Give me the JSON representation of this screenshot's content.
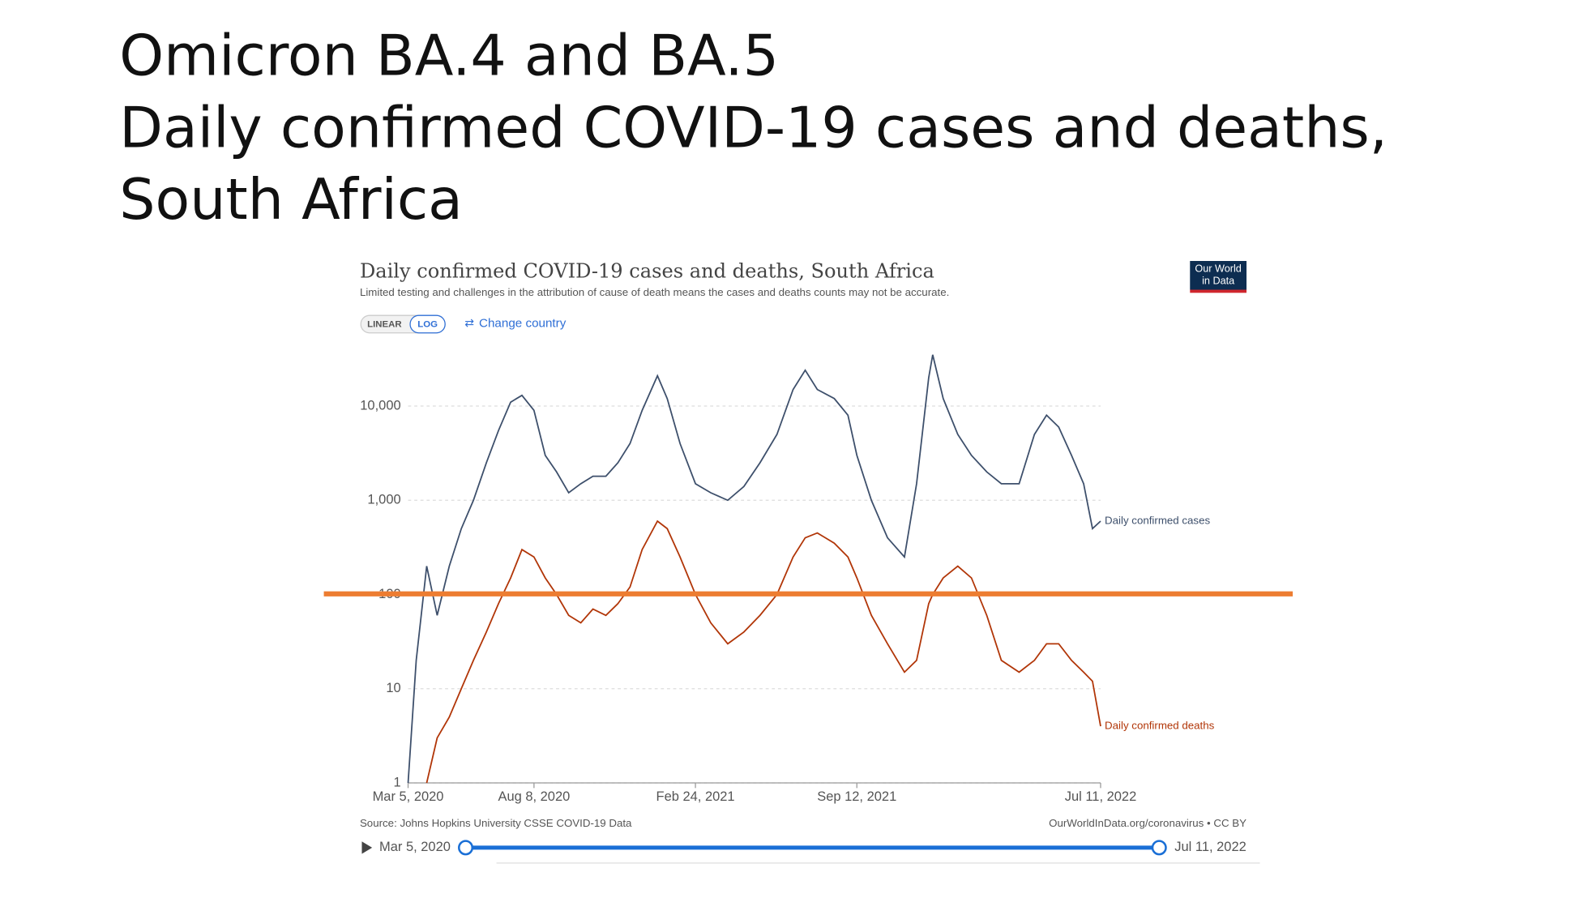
{
  "slide_title": [
    "Omicron BA.4 and BA.5",
    "Daily confirmed COVID-19 cases and deaths,",
    "South Africa"
  ],
  "logo": [
    "Our World",
    "in Data"
  ],
  "controls": {
    "linear": "LINEAR",
    "log": "LOG",
    "change": "Change country"
  },
  "source": "Source: Johns Hopkins University CSSE COVID-19 Data",
  "credit": "OurWorldInData.org/coronavirus • CC BY",
  "timeline": {
    "start": "Mar 5, 2020",
    "end": "Jul 11, 2022"
  },
  "chart_data": {
    "type": "line",
    "title": "Daily confirmed COVID-19 cases and deaths, South Africa",
    "subtitle": "Limited testing and challenges in the attribution of cause of death means the cases and deaths counts may not be accurate.",
    "x": [
      "Mar 5, 2020",
      "Mar 15, 2020",
      "Mar 28, 2020",
      "Apr 10, 2020",
      "Apr 25, 2020",
      "May 10, 2020",
      "May 25, 2020",
      "Jun 10, 2020",
      "Jun 25, 2020",
      "Jul 10, 2020",
      "Jul 24, 2020",
      "Aug 8, 2020",
      "Aug 22, 2020",
      "Sep 5, 2020",
      "Sep 20, 2020",
      "Oct 5, 2020",
      "Oct 20, 2020",
      "Nov 5, 2020",
      "Nov 20, 2020",
      "Dec 5, 2020",
      "Dec 20, 2020",
      "Jan 8, 2021",
      "Jan 20, 2021",
      "Feb 5, 2021",
      "Feb 24, 2021",
      "Mar 15, 2021",
      "Apr 5, 2021",
      "Apr 25, 2021",
      "May 15, 2021",
      "Jun 5, 2021",
      "Jun 25, 2021",
      "Jul 10, 2021",
      "Jul 25, 2021",
      "Aug 15, 2021",
      "Sep 1, 2021",
      "Sep 12, 2021",
      "Sep 30, 2021",
      "Oct 20, 2021",
      "Nov 10, 2021",
      "Nov 25, 2021",
      "Dec 10, 2021",
      "Dec 15, 2021",
      "Dec 28, 2021",
      "Jan 15, 2022",
      "Feb 1, 2022",
      "Feb 20, 2022",
      "Mar 10, 2022",
      "Apr 1, 2022",
      "Apr 20, 2022",
      "May 5, 2022",
      "May 20, 2022",
      "Jun 5, 2022",
      "Jun 20, 2022",
      "Jul 1, 2022",
      "Jul 11, 2022"
    ],
    "series": [
      {
        "name": "Daily confirmed cases",
        "color": "#3d4f6b",
        "values": [
          1,
          20,
          200,
          60,
          200,
          500,
          1000,
          2500,
          5500,
          11000,
          13000,
          9000,
          3000,
          2000,
          1200,
          1500,
          1800,
          1800,
          2500,
          4000,
          9000,
          21000,
          12000,
          4000,
          1500,
          1200,
          1000,
          1400,
          2500,
          5000,
          15000,
          24000,
          15000,
          12000,
          8000,
          3000,
          1000,
          400,
          250,
          1500,
          20000,
          35000,
          12000,
          5000,
          3000,
          2000,
          1500,
          1500,
          5000,
          8000,
          6000,
          3000,
          1500,
          500,
          600
        ]
      },
      {
        "name": "Daily confirmed deaths",
        "color": "#b13507",
        "values": [
          null,
          null,
          1,
          3,
          5,
          10,
          20,
          40,
          80,
          150,
          300,
          250,
          150,
          100,
          60,
          50,
          70,
          60,
          80,
          120,
          300,
          600,
          500,
          250,
          100,
          50,
          30,
          40,
          60,
          100,
          250,
          400,
          450,
          350,
          250,
          150,
          60,
          30,
          15,
          20,
          80,
          100,
          150,
          200,
          150,
          60,
          20,
          15,
          20,
          30,
          30,
          20,
          15,
          12,
          4
        ]
      }
    ],
    "xlim": [
      "Mar 5, 2020",
      "Jul 11, 2022"
    ],
    "xticks": [
      "Mar 5, 2020",
      "Aug 8, 2020",
      "Feb 24, 2021",
      "Sep 12, 2021",
      "Jul 11, 2022"
    ],
    "ylim": [
      1,
      40000
    ],
    "log_y": true,
    "grid": true,
    "yticks": [
      1,
      10,
      100,
      {
        "value": 1000,
        "label": "1,000"
      },
      {
        "value": 10000,
        "label": "10,000"
      }
    ]
  }
}
